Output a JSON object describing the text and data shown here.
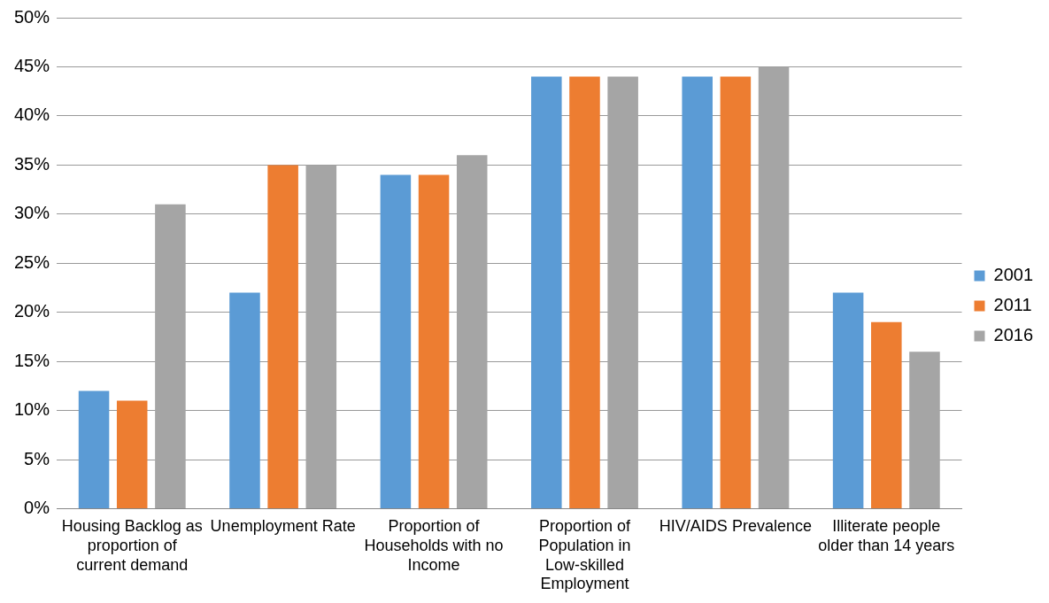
{
  "chart_data": {
    "type": "bar",
    "categories": [
      "Housing Backlog as proportion of current demand",
      "Unemployment Rate",
      "Proportion of Households with no Income",
      "Proportion of Population in Low-skilled Employment",
      "HIV/AIDS Prevalence",
      "Illiterate people older than 14 years"
    ],
    "series": [
      {
        "name": "2001",
        "color": "#5b9bd5",
        "values": [
          12,
          22,
          34,
          44,
          44,
          22
        ]
      },
      {
        "name": "2011",
        "color": "#ed7d31",
        "values": [
          11,
          35,
          34,
          44,
          44,
          19
        ]
      },
      {
        "name": "2016",
        "color": "#a5a5a5",
        "values": [
          31,
          35,
          36,
          44,
          45,
          16
        ]
      }
    ],
    "ylim": [
      0,
      50
    ],
    "yticks": [
      {
        "value": 0,
        "label": "0%"
      },
      {
        "value": 5,
        "label": "5%"
      },
      {
        "value": 10,
        "label": "10%"
      },
      {
        "value": 15,
        "label": "15%"
      },
      {
        "value": 20,
        "label": "20%"
      },
      {
        "value": 25,
        "label": "25%"
      },
      {
        "value": 30,
        "label": "30%"
      },
      {
        "value": 35,
        "label": "35%"
      },
      {
        "value": 40,
        "label": "40%"
      },
      {
        "value": 45,
        "label": "45%"
      },
      {
        "value": 50,
        "label": "50%"
      }
    ],
    "grid": "y",
    "legend": "right"
  }
}
